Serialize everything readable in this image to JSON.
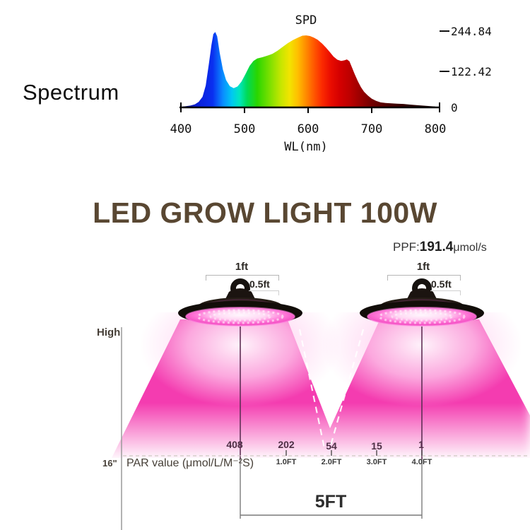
{
  "spectrum_section": {
    "label": "Spectrum",
    "chart_title": "SPD",
    "xlabel": "WL(nm)",
    "x_ticks": [
      "400",
      "500",
      "600",
      "700",
      "800"
    ],
    "y_ticks": [
      "244.84",
      "122.42",
      "0"
    ]
  },
  "chart_data": {
    "type": "area",
    "title": "SPD",
    "xlabel": "WL(nm)",
    "ylabel": "",
    "x_range_nm": [
      400,
      800
    ],
    "ylim": [
      0,
      260
    ],
    "y_tick_values": [
      0,
      122.42,
      244.84
    ],
    "x_tick_values": [
      400,
      500,
      600,
      700,
      800
    ],
    "wavelength_nm": [
      400,
      408,
      415,
      422,
      428,
      434,
      439,
      444,
      448,
      451,
      454,
      457,
      461,
      466,
      471,
      477,
      483,
      489,
      495,
      501,
      508,
      514,
      520,
      528,
      536,
      544,
      552,
      560,
      568,
      576,
      584,
      591,
      597,
      603,
      609,
      615,
      622,
      628,
      634,
      640,
      646,
      652,
      657,
      661,
      665,
      669,
      673,
      678,
      683,
      688,
      694,
      700,
      707,
      714,
      722,
      731,
      740,
      750,
      760,
      772,
      785,
      800
    ],
    "intensity": [
      2,
      4,
      6,
      10,
      18,
      34,
      70,
      140,
      200,
      235,
      242,
      228,
      175,
      122,
      88,
      68,
      62,
      67,
      82,
      105,
      133,
      149,
      157,
      161,
      166,
      172,
      182,
      194,
      206,
      216,
      224,
      230,
      231,
      229,
      224,
      217,
      205,
      192,
      178,
      163,
      153,
      149,
      151,
      154,
      148,
      128,
      108,
      85,
      65,
      50,
      38,
      28,
      21,
      16,
      14,
      13,
      12,
      11,
      9,
      7,
      5,
      3
    ],
    "gradient": [
      {
        "wl": 400,
        "color": "#0b0b56"
      },
      {
        "wl": 424,
        "color": "#0b1ed6"
      },
      {
        "wl": 450,
        "color": "#0a2ff0"
      },
      {
        "wl": 466,
        "color": "#0a8cff"
      },
      {
        "wl": 480,
        "color": "#00c8f2"
      },
      {
        "wl": 492,
        "color": "#00e6c0"
      },
      {
        "wl": 504,
        "color": "#00da58"
      },
      {
        "wl": 520,
        "color": "#2ad600"
      },
      {
        "wl": 540,
        "color": "#7de000"
      },
      {
        "wl": 557,
        "color": "#c6e600"
      },
      {
        "wl": 571,
        "color": "#f2e400"
      },
      {
        "wl": 584,
        "color": "#ffbe00"
      },
      {
        "wl": 597,
        "color": "#ff8a00"
      },
      {
        "wl": 610,
        "color": "#ff5500"
      },
      {
        "wl": 622,
        "color": "#fb2a00"
      },
      {
        "wl": 635,
        "color": "#ea0d00"
      },
      {
        "wl": 650,
        "color": "#d40000"
      },
      {
        "wl": 666,
        "color": "#bc0000"
      },
      {
        "wl": 682,
        "color": "#9a0000"
      },
      {
        "wl": 700,
        "color": "#740000"
      },
      {
        "wl": 726,
        "color": "#4c0000"
      },
      {
        "wl": 756,
        "color": "#2c0000"
      },
      {
        "wl": 800,
        "color": "#120000"
      }
    ]
  },
  "title_section": {
    "title": "LED GROW LIGHT 100W",
    "ppf_label": "PPF:",
    "ppf_value": "191.4",
    "ppf_unit": "μmol/s"
  },
  "diagram": {
    "cone_color": "#f43cb0",
    "lamp1": {
      "width_label": "1ft",
      "hook_label": "0.5ft"
    },
    "lamp2": {
      "width_label": "1ft",
      "hook_label": "0.5ft"
    },
    "high_label": "High",
    "height_label": "16\"",
    "par_label": "PAR value (μmol/L/M⁻²S)",
    "par_points": [
      {
        "value": "408",
        "distance": ""
      },
      {
        "value": "202",
        "distance": "1.0FT"
      },
      {
        "value": "54",
        "distance": "2.0FT"
      },
      {
        "value": "15",
        "distance": "3.0FT"
      },
      {
        "value": "1",
        "distance": "4.0FT"
      }
    ],
    "span_label": "5FT"
  }
}
